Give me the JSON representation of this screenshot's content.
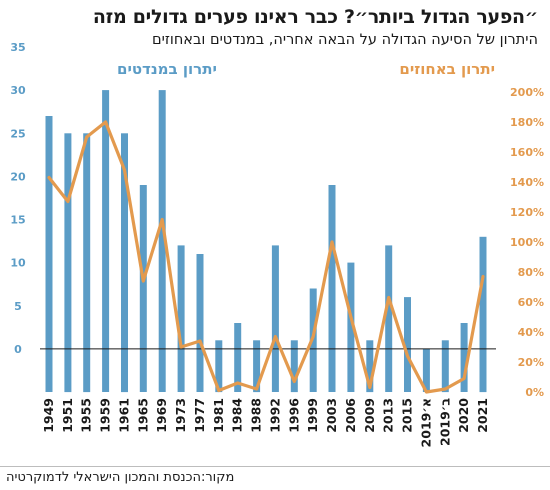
{
  "title": "״הפער הגדול ביותר״? כבר ראינו פערים גדולים מזה",
  "subtitle": "היתרון של הסיעה הגדולה על הבאה אחריה, במנדטים ובאחוזים",
  "source": "מקור:הכנסת והמכון הישראלי לדמוקרטיה",
  "colors": {
    "bars": "#5b9cc6",
    "line": "#e39a4e",
    "text": "#1a1a1a",
    "zero": "#1a1a1a"
  },
  "chart_data": {
    "type": "bar",
    "categories": [
      "1949",
      "1951",
      "1955",
      "1959",
      "1961",
      "1965",
      "1969",
      "1973",
      "1977",
      "1981",
      "1984",
      "1988",
      "1992",
      "1996",
      "1999",
      "2003",
      "2006",
      "2009",
      "2013",
      "2015",
      "2019א׳",
      "2019ב׳",
      "2020",
      "2021"
    ],
    "series": [
      {
        "name": "יתרון במנדטים",
        "type": "bar",
        "axis": "left",
        "values": [
          27,
          25,
          25,
          30,
          25,
          19,
          30,
          12,
          11,
          1,
          3,
          1,
          12,
          1,
          7,
          19,
          10,
          1,
          12,
          6,
          0,
          1,
          3,
          13
        ]
      },
      {
        "name": "יתרון באחוזים",
        "type": "line",
        "axis": "right",
        "values": [
          143,
          127,
          170,
          180,
          148,
          74,
          115,
          30,
          34,
          1,
          6,
          2,
          37,
          7,
          37,
          100,
          50,
          3,
          63,
          24,
          0,
          2,
          9,
          77
        ]
      }
    ],
    "y_left": {
      "label": "יתרון במנדטים",
      "ticks": [
        0,
        5,
        10,
        15,
        20,
        25,
        30,
        35
      ],
      "ylim": [
        -5,
        35
      ]
    },
    "y_right": {
      "label": "יתרון באחוזים",
      "ticks": [
        "0%",
        "20%",
        "40%",
        "60%",
        "80%",
        "100%",
        "120%",
        "140%",
        "160%",
        "180%",
        "200%"
      ],
      "ylim": [
        0,
        200
      ]
    },
    "grid": false
  }
}
